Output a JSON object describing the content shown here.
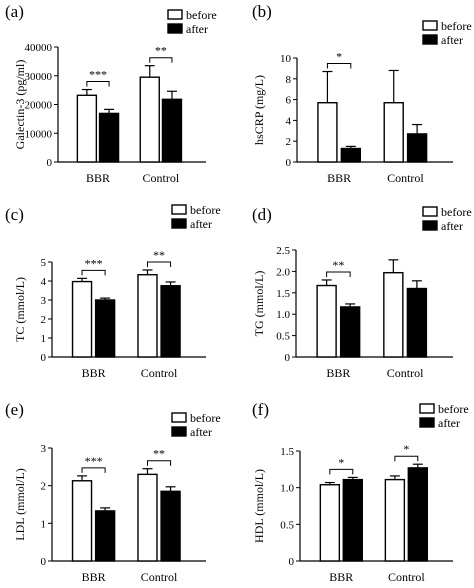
{
  "chart_data": [
    {
      "type": "bar",
      "panel_label": "(a)",
      "ylabel": "Galectin-3  (pg/ml)",
      "categories": [
        "BBR",
        "Control"
      ],
      "ylim": [
        0,
        40000
      ],
      "yticks": [
        0,
        10000,
        20000,
        30000,
        40000
      ],
      "ytick_labels": [
        "0",
        "10000",
        "20000",
        "30000",
        "40000"
      ],
      "series": [
        {
          "name": "before",
          "values": [
            23200,
            29500
          ],
          "errors": [
            2000,
            4000
          ]
        },
        {
          "name": "after",
          "values": [
            16900,
            21800
          ],
          "errors": [
            1400,
            2800
          ]
        }
      ],
      "significance": [
        "***",
        "**"
      ],
      "legend": "top-right",
      "grid": false
    },
    {
      "type": "bar",
      "panel_label": "(b)",
      "ylabel": "hsCRP  (mg/L)",
      "categories": [
        "BBR",
        "Control"
      ],
      "ylim": [
        0,
        10
      ],
      "yticks": [
        0,
        2,
        4,
        6,
        8,
        10
      ],
      "ytick_labels": [
        "0",
        "2",
        "4",
        "6",
        "8",
        "10"
      ],
      "series": [
        {
          "name": "before",
          "values": [
            5.7,
            5.7
          ],
          "errors": [
            3.0,
            3.1
          ]
        },
        {
          "name": "after",
          "values": [
            1.3,
            2.7
          ],
          "errors": [
            0.2,
            0.9
          ]
        }
      ],
      "significance": [
        "*",
        ""
      ],
      "legend": "top-right",
      "grid": false
    },
    {
      "type": "bar",
      "panel_label": "(c)",
      "ylabel": "TC  (mmol/L)",
      "categories": [
        "BBR",
        "Control"
      ],
      "ylim": [
        0,
        5
      ],
      "yticks": [
        0,
        1,
        2,
        3,
        4,
        5
      ],
      "ytick_labels": [
        "0",
        "1",
        "2",
        "3",
        "4",
        "5"
      ],
      "series": [
        {
          "name": "before",
          "values": [
            3.97,
            4.33
          ],
          "errors": [
            0.17,
            0.25
          ]
        },
        {
          "name": "after",
          "values": [
            3.0,
            3.75
          ],
          "errors": [
            0.1,
            0.2
          ]
        }
      ],
      "significance": [
        "***",
        "**"
      ],
      "legend": "top-right",
      "grid": false
    },
    {
      "type": "bar",
      "panel_label": "(d)",
      "ylabel": "TG  (mmol/L)",
      "categories": [
        "BBR",
        "Control"
      ],
      "ylim": [
        0,
        2.5
      ],
      "yticks": [
        0,
        0.5,
        1.0,
        1.5,
        2.0,
        2.5
      ],
      "ytick_labels": [
        "0",
        "0.5",
        "1.0",
        "1.5",
        "2.0",
        "2.5"
      ],
      "series": [
        {
          "name": "before",
          "values": [
            1.67,
            1.97
          ],
          "errors": [
            0.13,
            0.3
          ]
        },
        {
          "name": "after",
          "values": [
            1.17,
            1.6
          ],
          "errors": [
            0.07,
            0.18
          ]
        }
      ],
      "significance": [
        "**",
        ""
      ],
      "legend": "top-right",
      "grid": false
    },
    {
      "type": "bar",
      "panel_label": "(e)",
      "ylabel": "LDL  (mmol/L)",
      "categories": [
        "BBR",
        "Control"
      ],
      "ylim": [
        0,
        3
      ],
      "yticks": [
        0,
        1,
        2,
        3
      ],
      "ytick_labels": [
        "0",
        "1",
        "2",
        "3"
      ],
      "series": [
        {
          "name": "before",
          "values": [
            2.13,
            2.3
          ],
          "errors": [
            0.13,
            0.15
          ]
        },
        {
          "name": "after",
          "values": [
            1.33,
            1.85
          ],
          "errors": [
            0.08,
            0.12
          ]
        }
      ],
      "significance": [
        "***",
        "**"
      ],
      "legend": "top-right",
      "grid": false
    },
    {
      "type": "bar",
      "panel_label": "(f)",
      "ylabel": "HDL  (mmol/L)",
      "categories": [
        "BBR",
        "Control"
      ],
      "ylim": [
        0,
        1.5
      ],
      "yticks": [
        0,
        0.5,
        1.0,
        1.5
      ],
      "ytick_labels": [
        "0",
        "0.5",
        "1.0",
        "1.5"
      ],
      "series": [
        {
          "name": "before",
          "values": [
            1.04,
            1.11
          ],
          "errors": [
            0.03,
            0.05
          ]
        },
        {
          "name": "after",
          "values": [
            1.11,
            1.27
          ],
          "errors": [
            0.03,
            0.05
          ]
        }
      ],
      "significance": [
        "*",
        "*"
      ],
      "legend": "top-right",
      "grid": false
    }
  ]
}
